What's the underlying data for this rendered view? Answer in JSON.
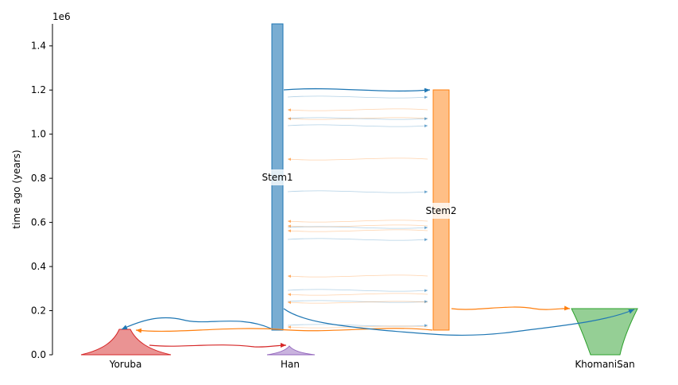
{
  "figure": {
    "axis_multiplier": "1e6",
    "ylabel": "time ago (years)",
    "y_ticks": [
      "0.0",
      "0.2",
      "0.4",
      "0.6",
      "0.8",
      "1.0",
      "1.2",
      "1.4"
    ],
    "y_tick_values": [
      0.0,
      0.2,
      0.4,
      0.6,
      0.8,
      1.0,
      1.2,
      1.4
    ],
    "ylim": [
      0,
      1.5
    ],
    "demes": {
      "yoruba": {
        "label": "Yoruba",
        "color": "#d62728"
      },
      "han": {
        "label": "Han",
        "color": "#9467bd"
      },
      "khomanisan": {
        "label": "KhomaniSan",
        "color": "#2ca02c"
      },
      "stem1": {
        "label": "Stem1",
        "color": "#1f77b4",
        "start_time": 1500000,
        "end_time": 110000
      },
      "stem2": {
        "label": "Stem2",
        "color": "#ff7f0e",
        "start_time": 1200000,
        "end_time": 110000
      }
    }
  }
}
